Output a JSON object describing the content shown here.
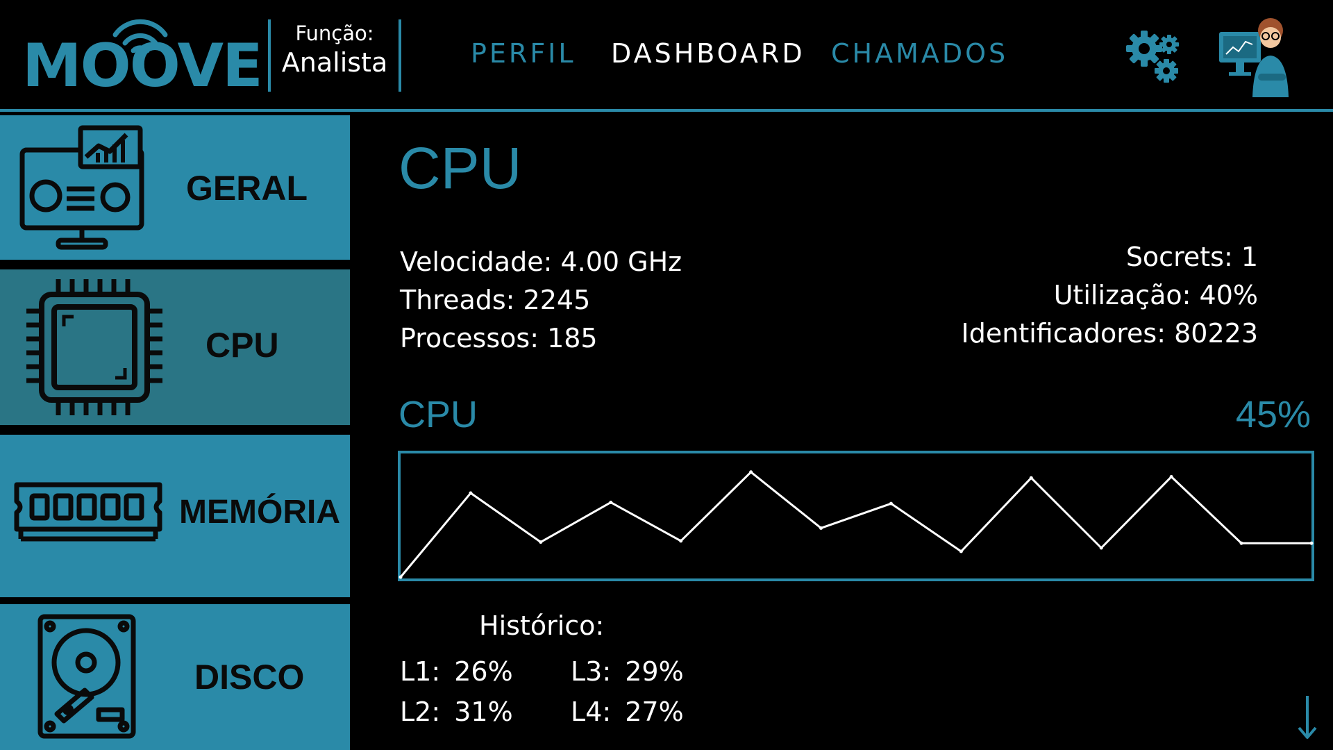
{
  "header": {
    "logo_text": "MOOVE",
    "role_label": "Função:",
    "role_value": "Analista",
    "nav": [
      {
        "label": "PERFIL",
        "active": false
      },
      {
        "label": "DASHBOARD",
        "active": true
      },
      {
        "label": "CHAMADOS",
        "active": false
      }
    ],
    "settings_icon": "gears-icon",
    "avatar_icon": "analyst-avatar-icon"
  },
  "sidebar": {
    "items": [
      {
        "label": "GERAL",
        "icon": "monitor-dashboard-icon",
        "active": false
      },
      {
        "label": "CPU",
        "icon": "cpu-chip-icon",
        "active": true
      },
      {
        "label": "MEMÓRIA",
        "icon": "ram-memory-icon",
        "active": false
      },
      {
        "label": "DISCO",
        "icon": "hard-disk-icon",
        "active": false
      }
    ]
  },
  "main": {
    "title": "CPU",
    "stats_left": [
      "Velocidade: 4.00 GHz",
      "Threads: 2245",
      "Processos: 185"
    ],
    "stats_right": [
      "Socrets: 1",
      "Utilização: 40%",
      "Identificadores: 80223"
    ],
    "chart_label": "CPU",
    "chart_value": "45%",
    "history_title": "Histórico:",
    "history": {
      "l1": "L1: 26%",
      "l2": "L2: 31%",
      "l3": "L3: 29%",
      "l4": "L4: 27%"
    }
  },
  "chart_data": {
    "type": "line",
    "y_range": [
      0,
      100
    ],
    "series": [
      {
        "values": [
          0,
          72,
          30,
          64,
          31,
          90,
          42,
          63,
          22,
          85,
          25,
          86,
          29,
          29
        ]
      }
    ]
  },
  "colors": {
    "accent": "#2a8aa8",
    "sidebar_active": "#2a7585",
    "background": "#000000",
    "text": "#ffffff"
  }
}
